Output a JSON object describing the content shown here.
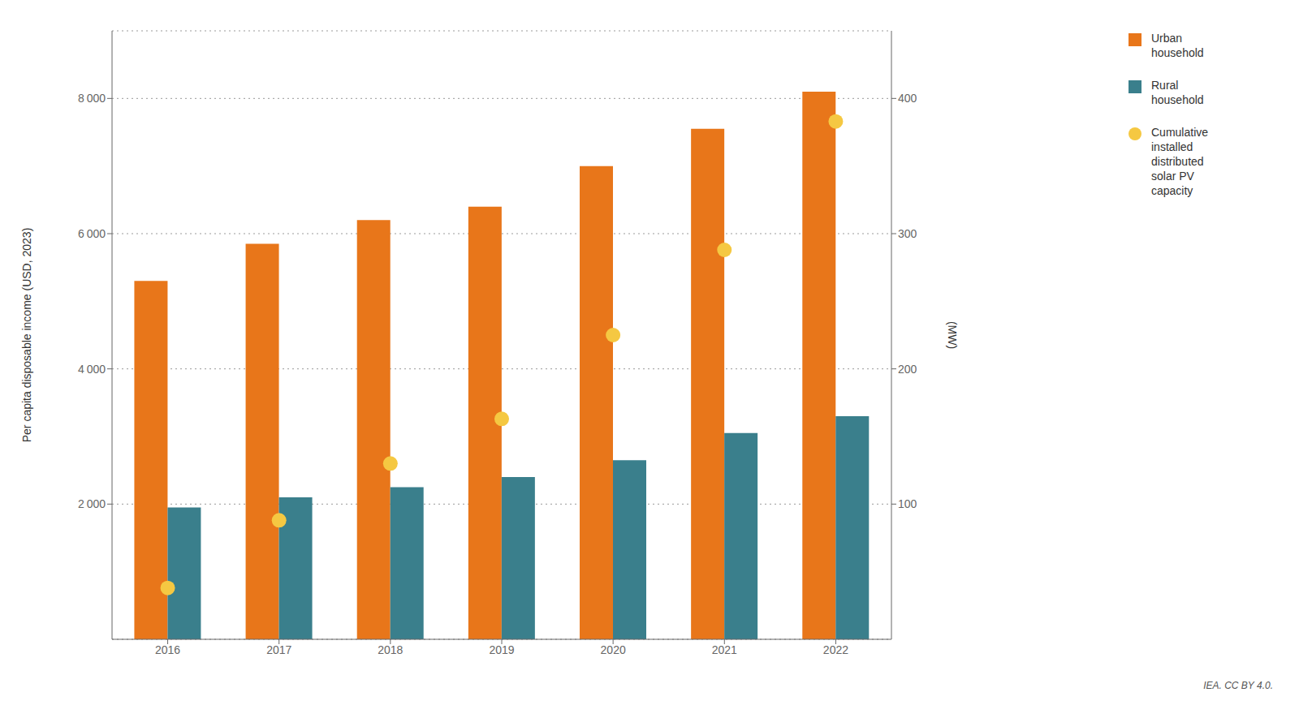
{
  "chart_data": {
    "type": "bar",
    "categories": [
      "2016",
      "2017",
      "2018",
      "2019",
      "2020",
      "2021",
      "2022"
    ],
    "series": [
      {
        "name": "Urban\nhousehold",
        "color": "#E8761A",
        "values": [
          5300,
          5850,
          6200,
          6400,
          7000,
          7550,
          8100
        ]
      },
      {
        "name": "Rural\nhousehold",
        "color": "#3A7F8C",
        "values": [
          1950,
          2100,
          2250,
          2400,
          2650,
          3050,
          3300
        ]
      },
      {
        "name": "Cumulative\ninstalled\ndistributed\nsolar PV\ncapacity",
        "type": "scatter",
        "axis": "y2",
        "marker": "circle",
        "color": "#F5C842",
        "values": [
          38,
          88,
          130,
          163,
          225,
          288,
          383
        ]
      }
    ],
    "ylabel": "Per capita disposable income (USD, 2023)",
    "y2label": "(MW)",
    "ylim": [
      0,
      9000
    ],
    "yticks": [
      {
        "value": 2000,
        "label": "2 000"
      },
      {
        "value": 4000,
        "label": "4 000"
      },
      {
        "value": 6000,
        "label": "6 000"
      },
      {
        "value": 8000,
        "label": "8 000"
      }
    ],
    "y2lim": [
      0,
      450
    ],
    "y2ticks": [
      100,
      200,
      300,
      400
    ],
    "grid": true,
    "legend": "right",
    "annotations": [
      "IEA. CC BY 4.0."
    ]
  }
}
